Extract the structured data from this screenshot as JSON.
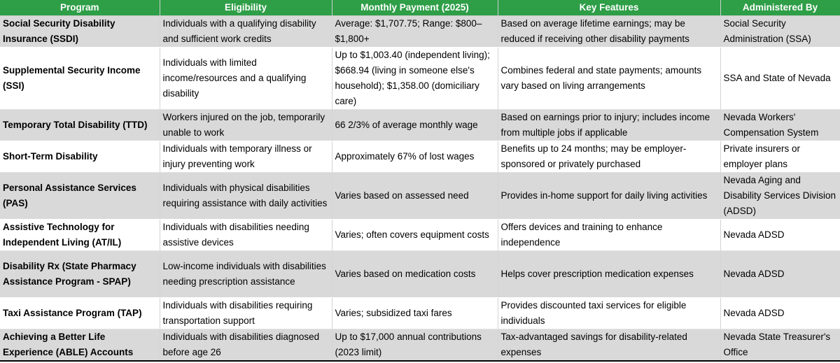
{
  "table": {
    "headers": [
      "Program",
      "Eligibility",
      "Monthly Payment (2025)",
      "Key Features",
      "Administered By"
    ],
    "rows": [
      {
        "program": "Social Security Disability Insurance (SSDI)",
        "eligibility": "Individuals with a qualifying disability and sufficient work credits",
        "payment": "Average: $1,707.75; Range: $800–$1,800+",
        "features": "Based on average lifetime earnings; may be reduced if receiving other disability payments",
        "administered_by": "Social Security Administration (SSA)"
      },
      {
        "program": "Supplemental Security Income (SSI)",
        "eligibility": "Individuals with limited income/resources and a qualifying disability",
        "payment": "Up to $1,003.40 (independent living); $668.94 (living in someone else's household); $1,358.00 (domiciliary care)",
        "features": "Combines federal and state payments; amounts vary based on living arrangements",
        "administered_by": "SSA and State of Nevada"
      },
      {
        "program": "Temporary Total Disability (TTD)",
        "eligibility": "Workers injured on the job, temporarily unable to work",
        "payment": "66 2/3% of average monthly wage",
        "features": "Based on earnings prior to injury; includes income from multiple jobs if applicable",
        "administered_by": "Nevada Workers' Compensation System"
      },
      {
        "program": "Short-Term Disability",
        "eligibility": "Individuals with temporary illness or injury preventing work",
        "payment": "Approximately 67% of lost wages",
        "features": "Benefits up to 24 months; may be employer-sponsored or privately purchased",
        "administered_by": "Private insurers or employer plans"
      },
      {
        "program": "Personal Assistance Services (PAS)",
        "eligibility": "Individuals with physical disabilities requiring assistance with daily activities",
        "payment": "Varies based on assessed need",
        "features": "Provides in-home support for daily living activities",
        "administered_by": "Nevada Aging and Disability Services Division (ADSD)"
      },
      {
        "program": "Assistive Technology for Independent Living (AT/IL)",
        "eligibility": "Individuals with disabilities needing assistive devices",
        "payment": "Varies; often covers equipment costs",
        "features": "Offers devices and training to enhance independence",
        "administered_by": "Nevada ADSD"
      },
      {
        "program": "Disability Rx (State Pharmacy Assistance Program - SPAP)",
        "eligibility": "Low-income individuals with disabilities needing prescription assistance",
        "payment": "Varies based on medication costs",
        "features": "Helps cover prescription medication expenses",
        "administered_by": "Nevada ADSD"
      },
      {
        "program": "Taxi Assistance Program (TAP)",
        "eligibility": "Individuals with disabilities requiring transportation support",
        "payment": "Varies; subsidized taxi fares",
        "features": "Provides discounted taxi services for eligible individuals",
        "administered_by": "Nevada ADSD"
      },
      {
        "program": "Achieving a Better Life Experience (ABLE) Accounts",
        "eligibility": "Individuals with disabilities diagnosed before age 26",
        "payment": "Up to $17,000 annual contributions (2023 limit)",
        "features": "Tax-advantaged savings for disability-related expenses",
        "administered_by": "Nevada State Treasurer's Office"
      }
    ]
  },
  "colors": {
    "header_bg": "#2e9e47",
    "header_text": "#ffffff",
    "shaded_row": "#d9d9d9",
    "plain_row": "#ffffff"
  }
}
